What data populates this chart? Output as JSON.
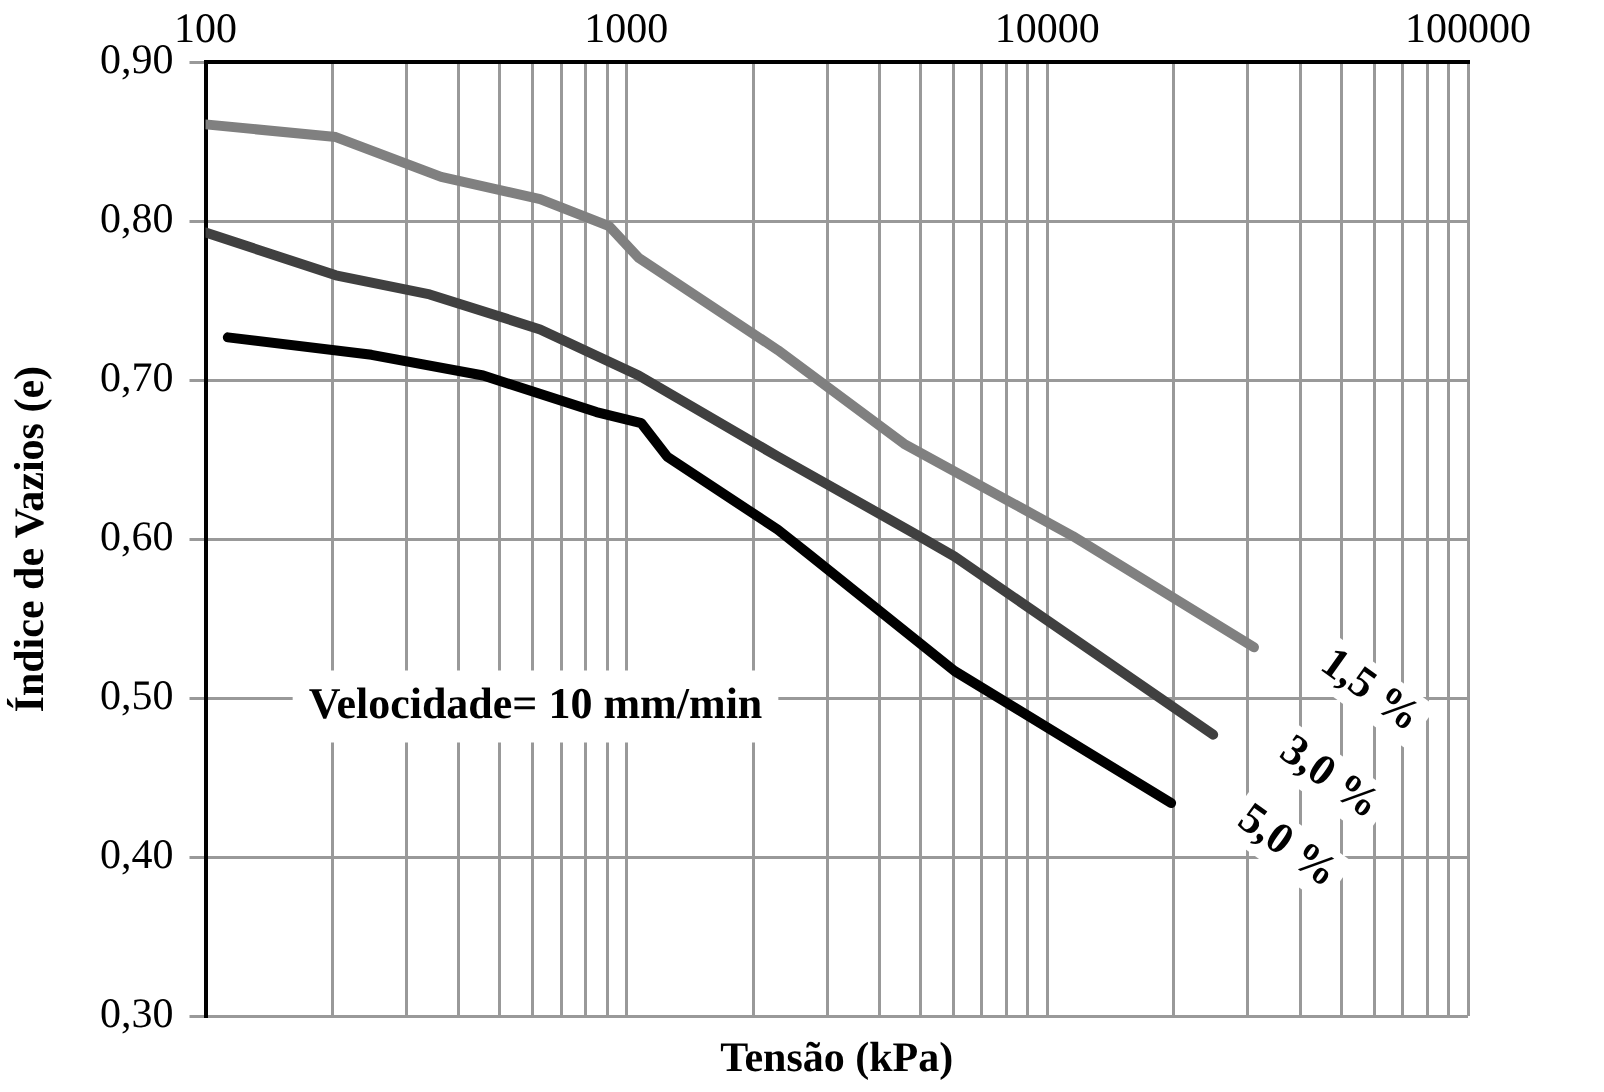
{
  "chart_data": {
    "type": "line",
    "xlabel": "Tensão (kPa)",
    "ylabel": "Índice de Vazios (e)",
    "log": "x",
    "xlim": [
      100,
      100000
    ],
    "ylim": [
      0.3,
      0.9
    ],
    "xticks": [
      100,
      {
        "value": 200,
        "label": null
      },
      {
        "value": 300,
        "label": null
      },
      {
        "value": 400,
        "label": null
      },
      {
        "value": 500,
        "label": null
      },
      {
        "value": 600,
        "label": null
      },
      {
        "value": 700,
        "label": null
      },
      {
        "value": 800,
        "label": null
      },
      {
        "value": 900,
        "label": null
      },
      1000,
      {
        "value": 2000,
        "label": null
      },
      {
        "value": 3000,
        "label": null
      },
      {
        "value": 4000,
        "label": null
      },
      {
        "value": 5000,
        "label": null
      },
      {
        "value": 6000,
        "label": null
      },
      {
        "value": 7000,
        "label": null
      },
      {
        "value": 8000,
        "label": null
      },
      {
        "value": 9000,
        "label": null
      },
      10000,
      {
        "value": 20000,
        "label": null
      },
      {
        "value": 30000,
        "label": null
      },
      {
        "value": 40000,
        "label": null
      },
      {
        "value": 50000,
        "label": null
      },
      {
        "value": 60000,
        "label": null
      },
      {
        "value": 70000,
        "label": null
      },
      {
        "value": 80000,
        "label": null
      },
      {
        "value": 90000,
        "label": null
      },
      100000
    ],
    "yticks": [
      {
        "value": 0.3,
        "label": "0,30"
      },
      {
        "value": 0.4,
        "label": "0,40"
      },
      {
        "value": 0.5,
        "label": "0,50"
      },
      {
        "value": 0.6,
        "label": "0,60"
      },
      {
        "value": 0.7,
        "label": "0,70"
      },
      {
        "value": 0.8,
        "label": "0,80"
      },
      {
        "value": 0.9,
        "label": "0,90"
      }
    ],
    "grid": true,
    "legend": false,
    "marker": "none",
    "line_style": "solid",
    "series": [
      {
        "name": "1,5 %",
        "color": "#808080",
        "x": [
          100,
          204,
          363,
          624,
          910,
          1070,
          2290,
          4570,
          11500,
          31000
        ],
        "values": [
          0.861,
          0.853,
          0.828,
          0.814,
          0.797,
          0.777,
          0.719,
          0.66,
          0.602,
          0.532
        ]
      },
      {
        "name": "3,0 %",
        "color": "#404040",
        "x": [
          100,
          204,
          341,
          624,
          1070,
          2290,
          4960,
          6030,
          24800
        ],
        "values": [
          0.793,
          0.766,
          0.754,
          0.732,
          0.703,
          0.652,
          0.602,
          0.589,
          0.477
        ]
      },
      {
        "name": "5,0 %",
        "color": "#000000",
        "x": [
          113,
          248,
          457,
          849,
          1085,
          1250,
          2290,
          2700,
          6030,
          19700
        ],
        "values": [
          0.727,
          0.716,
          0.703,
          0.68,
          0.673,
          0.652,
          0.606,
          0.591,
          0.517,
          0.434
        ]
      }
    ],
    "annotations": [
      "Velocidade= 10 mm/min"
    ]
  }
}
